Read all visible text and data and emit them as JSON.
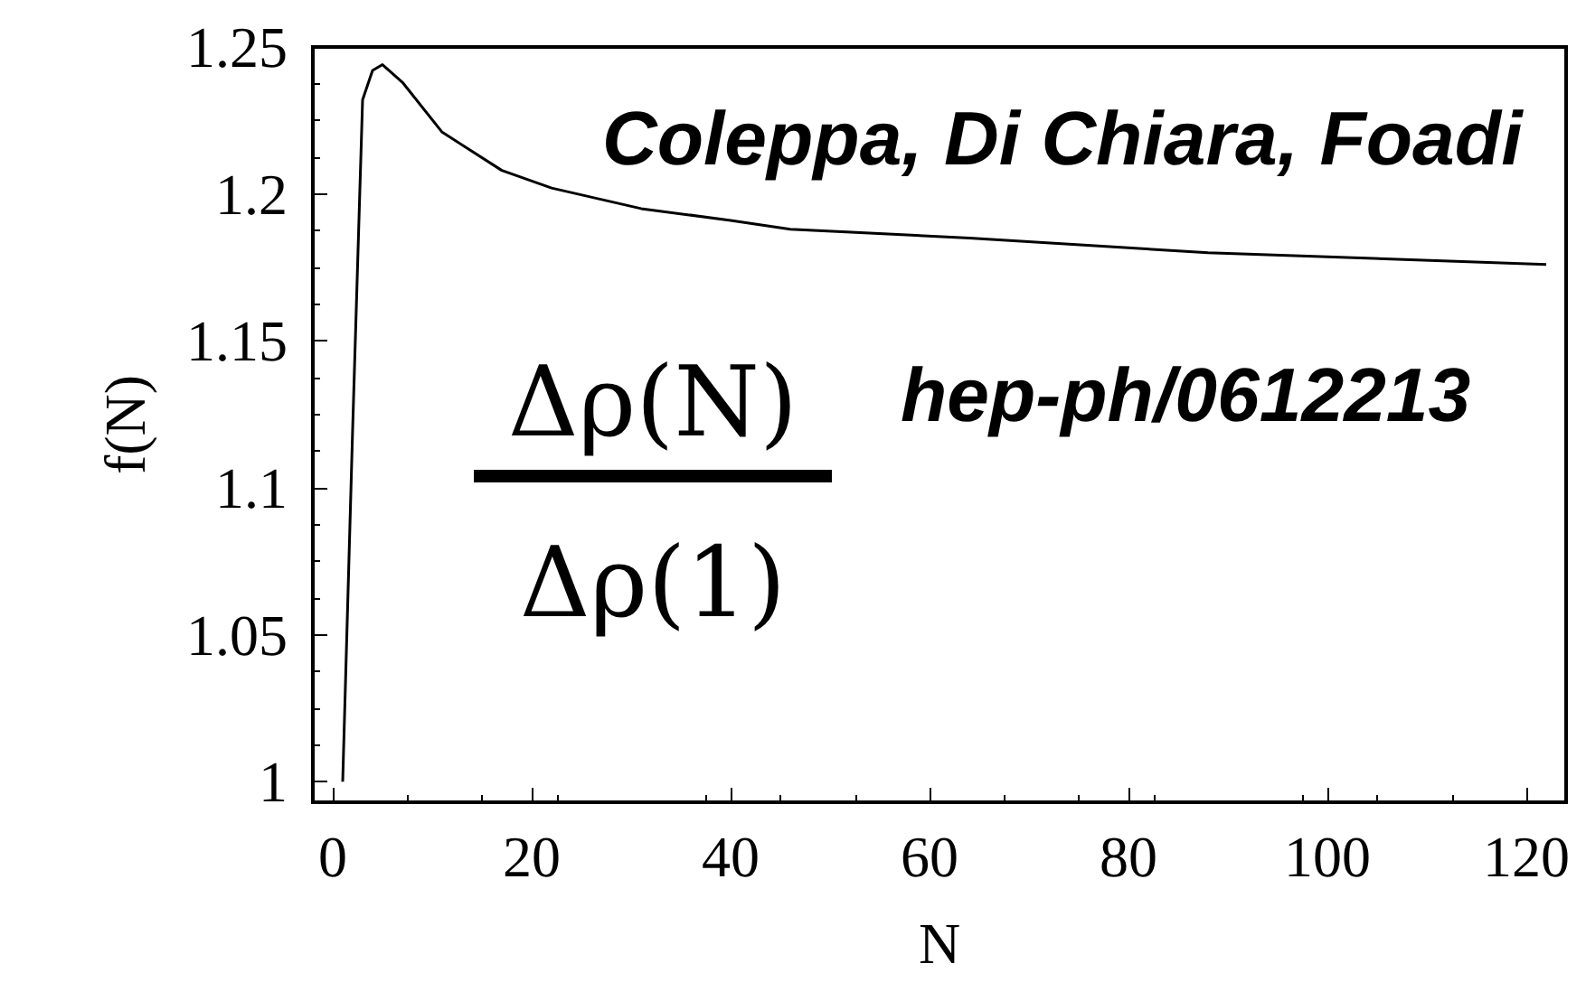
{
  "chart_data": {
    "type": "line",
    "xlabel": "N",
    "ylabel": "f(N)",
    "annotations": [
      "Coleppa, Di Chiara, Foadi",
      "hep-ph/0612213",
      "Δρ(N)",
      "Δρ(1)"
    ],
    "x": [
      1,
      2,
      3,
      4,
      5,
      7,
      11,
      17,
      22,
      31,
      40,
      46,
      64,
      88,
      122
    ],
    "series": [
      {
        "color": "#000000",
        "values": [
          1.0,
          1.12,
          1.232,
          1.242,
          1.244,
          1.238,
          1.221,
          1.208,
          1.202,
          1.195,
          1.191,
          1.188,
          1.185,
          1.18,
          1.176
        ]
      }
    ],
    "xlim": [
      -2,
      124
    ],
    "xticks": [
      0,
      20,
      40,
      60,
      80,
      100,
      120
    ],
    "ylim": [
      0.993,
      1.25
    ],
    "yticks": [
      1,
      1.05,
      1.1,
      1.15,
      1.2,
      1.25
    ],
    "grid": false,
    "marker": "none",
    "line_style": "solid"
  }
}
